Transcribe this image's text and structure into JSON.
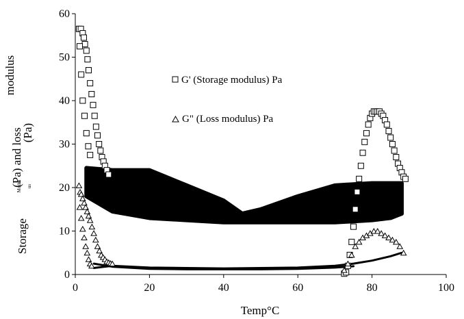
{
  "chart_data": {
    "type": "scatter",
    "title": "",
    "xlabel": "Temp°C",
    "ylabel_parts": [
      "modulus",
      "(Pa) and loss",
      "(Pa)",
      "Modul",
      "us",
      "Storage"
    ],
    "xlim": [
      0,
      100
    ],
    "ylim": [
      0,
      60
    ],
    "x_ticks": [
      "0",
      "20",
      "40",
      "60",
      "80",
      "100"
    ],
    "y_ticks": [
      "0",
      "10",
      "20",
      "30",
      "40",
      "50",
      "60"
    ],
    "grid": false,
    "legend_placement": "upper-middle",
    "series": [
      {
        "name": "G' (Storage modulus) Pa",
        "marker": "square",
        "color": "#000000",
        "x": [
          1.0,
          1.5,
          2.0,
          2.3,
          2.6,
          3.0,
          3.3,
          3.6,
          4.0,
          4.4,
          4.8,
          5.2,
          5.6,
          6.0,
          6.4,
          6.8,
          7.2,
          7.6,
          8.0,
          8.5,
          9.0,
          1.2,
          1.6,
          2.0,
          2.5,
          3.0,
          3.5,
          4.0,
          72.5,
          73.0,
          73.5,
          74.0,
          74.5,
          75.0,
          75.5,
          76.0,
          76.5,
          77.0,
          77.5,
          78.0,
          78.5,
          79.0,
          79.5,
          80.0,
          80.5,
          81.0,
          81.5,
          82.0,
          82.5,
          83.0,
          83.5,
          84.0,
          84.5,
          85.0,
          85.5,
          86.0,
          86.5,
          87.0,
          87.5,
          88.0,
          88.5,
          89.0
        ],
        "y": [
          56.5,
          56.5,
          55.5,
          54.5,
          53.0,
          51.5,
          49.5,
          47.0,
          44.0,
          41.5,
          39.0,
          36.5,
          34.0,
          32.0,
          30.0,
          28.5,
          27.0,
          26.0,
          25.0,
          24.0,
          23.0,
          52.5,
          46.0,
          40.0,
          36.5,
          32.5,
          29.5,
          27.5,
          0.2,
          0.5,
          2.0,
          4.5,
          7.5,
          11.0,
          15.0,
          19.0,
          22.0,
          25.0,
          28.0,
          30.5,
          32.5,
          34.5,
          36.0,
          37.0,
          37.5,
          37.5,
          37.5,
          37.5,
          37.0,
          36.5,
          35.5,
          34.5,
          33.0,
          31.5,
          30.0,
          28.5,
          27.0,
          25.5,
          24.5,
          23.5,
          22.5,
          22.0
        ]
      },
      {
        "name": "G\" (Loss modulus) Pa",
        "marker": "triangle",
        "color": "#000000",
        "x": [
          1.0,
          1.3,
          1.6,
          2.0,
          2.4,
          2.8,
          3.2,
          3.6,
          4.0,
          4.5,
          5.0,
          5.5,
          6.0,
          6.5,
          7.0,
          7.5,
          8.0,
          8.5,
          9.0,
          9.5,
          10.0,
          1.2,
          1.6,
          2.0,
          2.4,
          2.8,
          3.2,
          3.6,
          4.0,
          4.4,
          72.5,
          73.5,
          74.5,
          75.5,
          76.5,
          77.5,
          78.5,
          79.5,
          80.5,
          81.5,
          82.5,
          83.5,
          84.5,
          85.5,
          86.5,
          87.5,
          88.5
        ],
        "y": [
          20.5,
          19.0,
          18.5,
          17.5,
          16.5,
          15.5,
          14.5,
          13.5,
          12.5,
          11.0,
          9.5,
          8.0,
          6.5,
          5.5,
          4.5,
          4.0,
          3.5,
          3.0,
          2.8,
          2.6,
          2.5,
          15.5,
          13.0,
          10.5,
          8.5,
          6.5,
          5.0,
          3.5,
          2.5,
          2.0,
          1.0,
          2.5,
          4.5,
          6.5,
          7.5,
          8.5,
          9.0,
          9.5,
          10.0,
          10.0,
          9.5,
          9.0,
          8.5,
          8.0,
          7.5,
          6.5,
          5.0
        ]
      }
    ],
    "dense_bands": [
      {
        "series": "G' (Storage modulus) Pa",
        "x": [
          3,
          10,
          20,
          30,
          40,
          45,
          50,
          60,
          70,
          80,
          85,
          88
        ],
        "upper": [
          24.5,
          24.0,
          24.0,
          20.5,
          17.0,
          14.0,
          15.0,
          18.0,
          20.5,
          21.0,
          21.0,
          21.0
        ],
        "lower": [
          18.0,
          14.5,
          13.0,
          12.5,
          12.0,
          12.0,
          12.0,
          12.0,
          12.0,
          12.5,
          13.0,
          14.0
        ]
      }
    ],
    "dense_curves": [
      {
        "series": "G\" (Loss modulus) Pa",
        "x": [
          5,
          10,
          20,
          30,
          40,
          50,
          60,
          70,
          75,
          80,
          85,
          88
        ],
        "y": [
          1.5,
          2.0,
          1.6,
          1.5,
          1.4,
          1.5,
          1.6,
          2.0,
          2.5,
          3.2,
          4.2,
          5.0
        ]
      },
      {
        "series": "G\" (Loss modulus) Pa",
        "x": [
          5,
          10,
          20,
          30,
          40,
          50,
          60,
          70,
          75
        ],
        "y": [
          2.5,
          1.8,
          1.3,
          1.2,
          1.2,
          1.2,
          1.3,
          1.6,
          1.9
        ]
      }
    ]
  }
}
